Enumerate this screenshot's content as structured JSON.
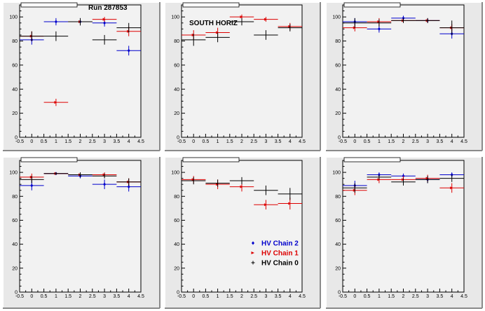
{
  "colors": {
    "chain2": "#0000cc",
    "chain1": "#dd0000",
    "chain0": "#000000"
  },
  "chart_data": [
    {
      "type": "scatter",
      "title": "",
      "annotation": "Run 287853",
      "xlim": [
        -0.5,
        4.5
      ],
      "ylim": [
        0,
        110
      ],
      "xticks": [
        "-0.5",
        "0",
        "0.5",
        "1",
        "1.5",
        "2",
        "2.5",
        "3",
        "3.5",
        "4",
        "4.5"
      ],
      "yticks": [
        "0",
        "20",
        "40",
        "60",
        "80",
        "100"
      ],
      "series": [
        {
          "color_key": "chain2",
          "x": [
            0,
            1,
            2,
            3,
            4
          ],
          "xerr": 0.5,
          "y": [
            81,
            96,
            96,
            95,
            72
          ],
          "yerr": [
            4,
            3,
            3,
            3,
            4
          ]
        },
        {
          "color_key": "chain1",
          "x": [
            0,
            1,
            2,
            3,
            4
          ],
          "xerr": 0.5,
          "y": [
            84,
            29,
            96,
            98,
            88
          ],
          "yerr": [
            4,
            3,
            2,
            2,
            4
          ]
        },
        {
          "color_key": "chain0",
          "x": [
            0,
            1,
            2,
            3,
            4
          ],
          "xerr": 0.5,
          "y": [
            84,
            84,
            96,
            81,
            91
          ],
          "yerr": [
            4,
            4,
            3,
            4,
            4
          ]
        }
      ]
    },
    {
      "type": "scatter",
      "title": "",
      "annotation": "SOUTH HORIZ",
      "xlim": [
        -0.5,
        4.5
      ],
      "ylim": [
        0,
        110
      ],
      "xticks": [
        "-0.5",
        "0",
        "0.5",
        "1",
        "1.5",
        "2",
        "2.5",
        "3",
        "3.5",
        "4",
        "4.5"
      ],
      "yticks": [
        "0",
        "20",
        "40",
        "60",
        "80",
        "100"
      ],
      "series": [
        {
          "color_key": "chain1",
          "x": [
            0,
            1,
            2,
            3,
            4
          ],
          "xerr": 0.5,
          "y": [
            85,
            87,
            100,
            98,
            92
          ],
          "yerr": [
            4,
            4,
            2,
            2,
            3
          ]
        },
        {
          "color_key": "chain0",
          "x": [
            0,
            1,
            2,
            3,
            4
          ],
          "xerr": 0.5,
          "y": [
            81,
            83,
            96,
            85,
            91
          ],
          "yerr": [
            5,
            4,
            3,
            4,
            3
          ]
        }
      ]
    },
    {
      "type": "scatter",
      "title": "",
      "annotation": "",
      "xlim": [
        -0.5,
        4.5
      ],
      "ylim": [
        0,
        110
      ],
      "xticks": [
        "-0.5",
        "0",
        "0.5",
        "1",
        "1.5",
        "2",
        "2.5",
        "3",
        "3.5",
        "4",
        "4.5"
      ],
      "yticks": [
        "0",
        "20",
        "40",
        "60",
        "80",
        "100"
      ],
      "series": [
        {
          "color_key": "chain2",
          "x": [
            0,
            1,
            2,
            3,
            4
          ],
          "xerr": 0.5,
          "y": [
            96,
            90,
            99,
            97,
            86
          ],
          "yerr": [
            3,
            3,
            2,
            2,
            4
          ]
        },
        {
          "color_key": "chain1",
          "x": [
            0,
            1,
            2,
            3,
            4
          ],
          "xerr": 0.5,
          "y": [
            91,
            96,
            97,
            97,
            91
          ],
          "yerr": [
            3,
            3,
            2,
            2,
            3
          ]
        },
        {
          "color_key": "chain0",
          "x": [
            0,
            1,
            2,
            3,
            4
          ],
          "xerr": 0.5,
          "y": [
            95,
            95,
            97,
            97,
            91
          ],
          "yerr": [
            4,
            3,
            2,
            2,
            6
          ]
        }
      ]
    },
    {
      "type": "scatter",
      "title": "",
      "annotation": "",
      "xlim": [
        -0.5,
        4.5
      ],
      "ylim": [
        0,
        110
      ],
      "xticks": [
        "-0.5",
        "0",
        "0.5",
        "1",
        "1.5",
        "2",
        "2.5",
        "3",
        "3.5",
        "4",
        "4.5"
      ],
      "yticks": [
        "0",
        "20",
        "40",
        "60",
        "80",
        "100"
      ],
      "series": [
        {
          "color_key": "chain2",
          "x": [
            0,
            1,
            2,
            3,
            4
          ],
          "xerr": 0.5,
          "y": [
            89,
            99,
            97,
            90,
            88
          ],
          "yerr": [
            4,
            1,
            2,
            4,
            4
          ]
        },
        {
          "color_key": "chain1",
          "x": [
            0,
            1,
            2,
            3,
            4
          ],
          "xerr": 0.5,
          "y": [
            96,
            99,
            98,
            98,
            92
          ],
          "yerr": [
            3,
            1,
            2,
            2,
            3
          ]
        },
        {
          "color_key": "chain0",
          "x": [
            0,
            1,
            2,
            3,
            4
          ],
          "xerr": 0.5,
          "y": [
            94,
            99,
            98,
            97,
            92
          ],
          "yerr": [
            3,
            1,
            2,
            2,
            3
          ]
        }
      ]
    },
    {
      "type": "scatter",
      "title": "",
      "annotation": "",
      "xlim": [
        -0.5,
        4.5
      ],
      "ylim": [
        0,
        110
      ],
      "xticks": [
        "-0.5",
        "0",
        "0.5",
        "1",
        "1.5",
        "2",
        "2.5",
        "3",
        "3.5",
        "4",
        "4.5"
      ],
      "yticks": [
        "0",
        "20",
        "40",
        "60",
        "80",
        "100"
      ],
      "legend": {
        "position": "bottom-right",
        "entries": [
          {
            "label": "HV Chain 2",
            "color_key": "chain2",
            "marker": "diamond"
          },
          {
            "label": "HV Chain 1",
            "color_key": "chain1",
            "marker": "arrow"
          },
          {
            "label": "HV Chain 0",
            "color_key": "chain0",
            "marker": "plus"
          }
        ]
      },
      "series": [
        {
          "color_key": "chain1",
          "x": [
            0,
            1,
            2,
            3,
            4
          ],
          "xerr": 0.5,
          "y": [
            94,
            90,
            88,
            73,
            74
          ],
          "yerr": [
            3,
            4,
            4,
            4,
            5
          ]
        },
        {
          "color_key": "chain0",
          "x": [
            0,
            1,
            2,
            3,
            4
          ],
          "xerr": 0.5,
          "y": [
            93,
            91,
            93,
            85,
            82
          ],
          "yerr": [
            3,
            3,
            3,
            4,
            5
          ]
        }
      ]
    },
    {
      "type": "scatter",
      "title": "",
      "annotation": "",
      "xlim": [
        -0.5,
        4.5
      ],
      "ylim": [
        0,
        110
      ],
      "xticks": [
        "-0.5",
        "0",
        "0.5",
        "1",
        "1.5",
        "2",
        "2.5",
        "3",
        "3.5",
        "4",
        "4.5"
      ],
      "yticks": [
        "0",
        "20",
        "40",
        "60",
        "80",
        "100"
      ],
      "series": [
        {
          "color_key": "chain2",
          "x": [
            0,
            1,
            2,
            3,
            4
          ],
          "xerr": 0.5,
          "y": [
            89,
            98,
            97,
            94,
            98
          ],
          "yerr": [
            4,
            2,
            2,
            3,
            2
          ]
        },
        {
          "color_key": "chain1",
          "x": [
            0,
            1,
            2,
            3,
            4
          ],
          "xerr": 0.5,
          "y": [
            85,
            94,
            94,
            95,
            87
          ],
          "yerr": [
            4,
            3,
            3,
            3,
            4
          ]
        },
        {
          "color_key": "chain0",
          "x": [
            0,
            1,
            2,
            3,
            4
          ],
          "xerr": 0.5,
          "y": [
            87,
            96,
            92,
            94,
            95
          ],
          "yerr": [
            4,
            2,
            3,
            3,
            3
          ]
        }
      ]
    }
  ]
}
